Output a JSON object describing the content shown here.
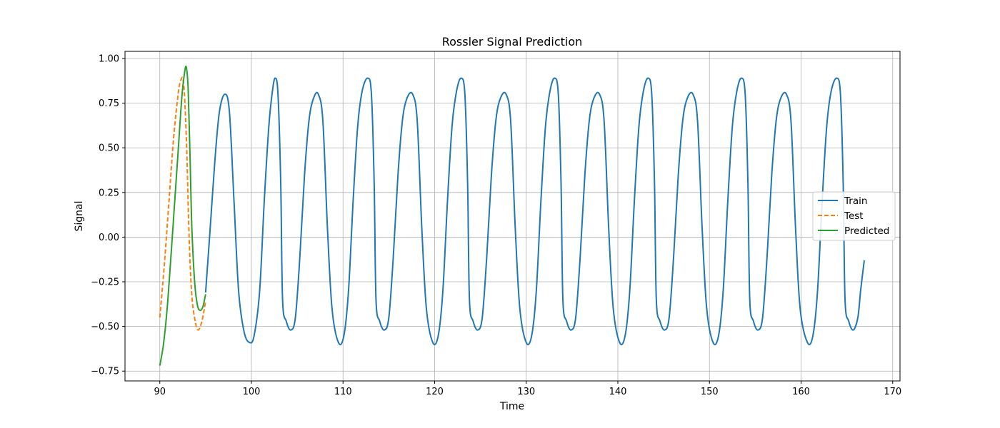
{
  "chart_data": {
    "type": "line",
    "title": "Rossler Signal Prediction",
    "xlabel": "Time",
    "ylabel": "Signal",
    "xlim": [
      86.2,
      170.8
    ],
    "ylim": [
      -0.805,
      1.04
    ],
    "xticks": [
      90,
      100,
      110,
      120,
      130,
      140,
      150,
      160,
      170
    ],
    "yticks": [
      -0.75,
      -0.5,
      -0.25,
      0.0,
      0.25,
      0.5,
      0.75,
      1.0
    ],
    "xtick_labels": [
      "90",
      "100",
      "110",
      "120",
      "130",
      "140",
      "150",
      "160",
      "170"
    ],
    "ytick_labels": [
      "−0.75",
      "−0.50",
      "−0.25",
      "0.00",
      "0.25",
      "0.50",
      "0.75",
      "1.00"
    ],
    "grid": true,
    "legend_position": "center-right",
    "series": [
      {
        "name": "Train",
        "color": "#1f77b4",
        "style": "solid",
        "points": [
          [
            95.0,
            -0.31
          ],
          [
            95.5,
            0.05
          ],
          [
            96.0,
            0.42
          ],
          [
            96.5,
            0.7
          ],
          [
            97.1,
            0.8
          ],
          [
            97.6,
            0.7
          ],
          [
            98.1,
            0.2
          ],
          [
            98.6,
            -0.3
          ],
          [
            99.2,
            -0.53
          ],
          [
            99.8,
            -0.59
          ],
          [
            100.3,
            -0.55
          ],
          [
            100.9,
            -0.3
          ],
          [
            101.4,
            0.2
          ],
          [
            101.9,
            0.62
          ],
          [
            102.3,
            0.82
          ],
          [
            102.6,
            0.89
          ],
          [
            102.9,
            0.8
          ],
          [
            103.2,
            0.3
          ],
          [
            103.4,
            -0.35
          ],
          [
            103.8,
            -0.47
          ],
          [
            104.3,
            -0.52
          ],
          [
            104.8,
            -0.45
          ],
          [
            105.3,
            -0.1
          ],
          [
            105.8,
            0.35
          ],
          [
            106.3,
            0.66
          ],
          [
            106.8,
            0.78
          ],
          [
            107.3,
            0.8
          ],
          [
            107.8,
            0.65
          ],
          [
            108.3,
            0.05
          ],
          [
            108.8,
            -0.4
          ],
          [
            109.5,
            -0.59
          ],
          [
            110.1,
            -0.55
          ],
          [
            110.6,
            -0.3
          ],
          [
            111.1,
            0.2
          ],
          [
            111.6,
            0.62
          ],
          [
            112.1,
            0.82
          ],
          [
            112.7,
            0.89
          ],
          [
            113.1,
            0.8
          ],
          [
            113.4,
            0.3
          ],
          [
            113.6,
            -0.35
          ],
          [
            114.0,
            -0.47
          ],
          [
            114.5,
            -0.52
          ],
          [
            115.0,
            -0.45
          ],
          [
            115.5,
            -0.1
          ],
          [
            116.0,
            0.35
          ],
          [
            116.5,
            0.66
          ],
          [
            117.0,
            0.78
          ],
          [
            117.6,
            0.8
          ],
          [
            118.1,
            0.65
          ],
          [
            118.6,
            0.05
          ],
          [
            119.1,
            -0.4
          ],
          [
            119.8,
            -0.59
          ],
          [
            120.4,
            -0.55
          ],
          [
            120.9,
            -0.3
          ],
          [
            121.4,
            0.2
          ],
          [
            121.9,
            0.62
          ],
          [
            122.4,
            0.82
          ],
          [
            122.9,
            0.89
          ],
          [
            123.3,
            0.8
          ],
          [
            123.6,
            0.3
          ],
          [
            123.8,
            -0.35
          ],
          [
            124.2,
            -0.47
          ],
          [
            124.7,
            -0.52
          ],
          [
            125.2,
            -0.45
          ],
          [
            125.7,
            -0.1
          ],
          [
            126.2,
            0.35
          ],
          [
            126.7,
            0.66
          ],
          [
            127.2,
            0.78
          ],
          [
            127.8,
            0.8
          ],
          [
            128.3,
            0.65
          ],
          [
            128.8,
            0.05
          ],
          [
            129.3,
            -0.4
          ],
          [
            130.0,
            -0.59
          ],
          [
            130.6,
            -0.55
          ],
          [
            131.1,
            -0.3
          ],
          [
            131.6,
            0.2
          ],
          [
            132.1,
            0.62
          ],
          [
            132.6,
            0.82
          ],
          [
            133.1,
            0.89
          ],
          [
            133.5,
            0.8
          ],
          [
            133.8,
            0.3
          ],
          [
            134.0,
            -0.35
          ],
          [
            134.4,
            -0.47
          ],
          [
            134.9,
            -0.52
          ],
          [
            135.4,
            -0.45
          ],
          [
            135.9,
            -0.1
          ],
          [
            136.4,
            0.35
          ],
          [
            136.9,
            0.66
          ],
          [
            137.4,
            0.78
          ],
          [
            138.0,
            0.8
          ],
          [
            138.5,
            0.65
          ],
          [
            139.0,
            0.05
          ],
          [
            139.5,
            -0.4
          ],
          [
            140.2,
            -0.59
          ],
          [
            140.8,
            -0.55
          ],
          [
            141.3,
            -0.3
          ],
          [
            141.8,
            0.2
          ],
          [
            142.3,
            0.62
          ],
          [
            142.8,
            0.82
          ],
          [
            143.3,
            0.89
          ],
          [
            143.7,
            0.8
          ],
          [
            144.0,
            0.3
          ],
          [
            144.2,
            -0.35
          ],
          [
            144.6,
            -0.47
          ],
          [
            145.1,
            -0.52
          ],
          [
            145.6,
            -0.45
          ],
          [
            146.1,
            -0.1
          ],
          [
            146.6,
            0.35
          ],
          [
            147.1,
            0.66
          ],
          [
            147.6,
            0.78
          ],
          [
            148.2,
            0.8
          ],
          [
            148.7,
            0.65
          ],
          [
            149.2,
            0.05
          ],
          [
            149.7,
            -0.4
          ],
          [
            150.4,
            -0.59
          ],
          [
            151.0,
            -0.55
          ],
          [
            151.5,
            -0.3
          ],
          [
            152.0,
            0.2
          ],
          [
            152.5,
            0.62
          ],
          [
            153.0,
            0.82
          ],
          [
            153.5,
            0.89
          ],
          [
            153.9,
            0.8
          ],
          [
            154.2,
            0.3
          ],
          [
            154.4,
            -0.35
          ],
          [
            154.8,
            -0.47
          ],
          [
            155.3,
            -0.52
          ],
          [
            155.8,
            -0.45
          ],
          [
            156.3,
            -0.1
          ],
          [
            156.8,
            0.35
          ],
          [
            157.3,
            0.66
          ],
          [
            157.8,
            0.78
          ],
          [
            158.4,
            0.8
          ],
          [
            158.9,
            0.65
          ],
          [
            159.4,
            0.05
          ],
          [
            159.9,
            -0.4
          ],
          [
            160.7,
            -0.59
          ],
          [
            161.3,
            -0.55
          ],
          [
            161.8,
            -0.3
          ],
          [
            162.3,
            0.2
          ],
          [
            162.8,
            0.62
          ],
          [
            163.3,
            0.82
          ],
          [
            163.9,
            0.89
          ],
          [
            164.3,
            0.8
          ],
          [
            164.6,
            0.3
          ],
          [
            164.8,
            -0.35
          ],
          [
            165.2,
            -0.47
          ],
          [
            165.7,
            -0.52
          ],
          [
            166.2,
            -0.45
          ],
          [
            166.5,
            -0.3
          ],
          [
            166.9,
            -0.13
          ]
        ]
      },
      {
        "name": "Test",
        "color": "#ff7f0e",
        "style": "dashed",
        "points": [
          [
            90.0,
            -0.45
          ],
          [
            90.5,
            -0.15
          ],
          [
            91.0,
            0.2
          ],
          [
            91.5,
            0.55
          ],
          [
            92.0,
            0.8
          ],
          [
            92.3,
            0.88
          ],
          [
            92.6,
            0.86
          ],
          [
            92.9,
            0.55
          ],
          [
            93.2,
            0.0
          ],
          [
            93.5,
            -0.33
          ],
          [
            93.9,
            -0.48
          ],
          [
            94.2,
            -0.52
          ],
          [
            94.6,
            -0.47
          ],
          [
            95.0,
            -0.36
          ]
        ]
      },
      {
        "name": "Predicted",
        "color": "#2ca02c",
        "style": "solid",
        "points": [
          [
            90.0,
            -0.72
          ],
          [
            90.4,
            -0.6
          ],
          [
            90.8,
            -0.4
          ],
          [
            91.2,
            -0.12
          ],
          [
            91.6,
            0.18
          ],
          [
            92.0,
            0.48
          ],
          [
            92.4,
            0.78
          ],
          [
            92.7,
            0.92
          ],
          [
            92.9,
            0.95
          ],
          [
            93.1,
            0.82
          ],
          [
            93.3,
            0.45
          ],
          [
            93.5,
            0.05
          ],
          [
            93.8,
            -0.25
          ],
          [
            94.1,
            -0.38
          ],
          [
            94.4,
            -0.41
          ],
          [
            94.7,
            -0.39
          ],
          [
            95.0,
            -0.32
          ]
        ]
      }
    ]
  }
}
